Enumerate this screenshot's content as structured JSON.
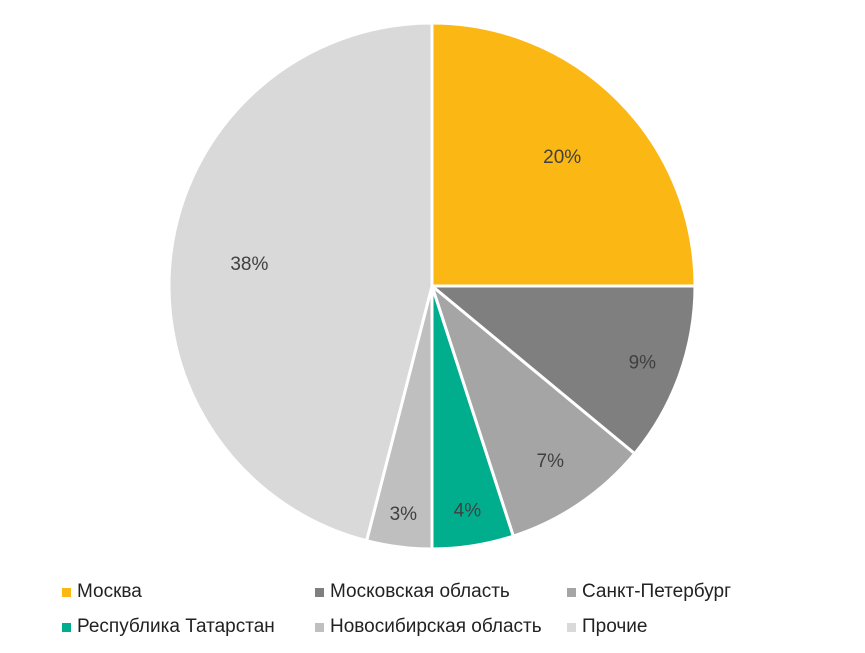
{
  "chart_data": {
    "type": "pie",
    "categories": [
      "Москва",
      "Московская область",
      "Санкт-Петербург",
      "Республика Татарстан",
      "Новосибирская область",
      "Прочие"
    ],
    "values": [
      25,
      11,
      9,
      5,
      4,
      46
    ],
    "labels": [
      "20%",
      "9%",
      "7%",
      "4%",
      "3%",
      "38%"
    ],
    "colors": [
      "#FBB714",
      "#7F7F7F",
      "#A5A5A5",
      "#00AE8E",
      "#BFBFBF",
      "#D9D9D9"
    ],
    "legend": "bottom",
    "title": ""
  }
}
